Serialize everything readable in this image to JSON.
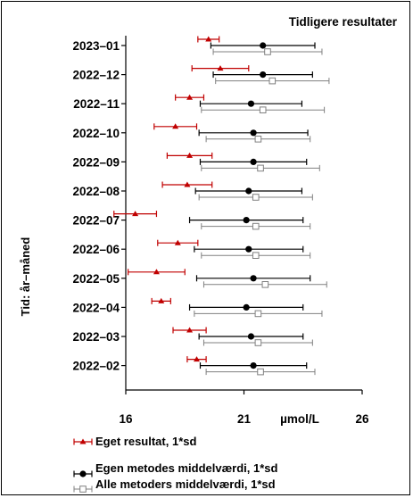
{
  "chart_data": {
    "type": "scatter",
    "title": "Tidligere resultater",
    "ylabel": "Tid: år–måned",
    "xlabel": "µmol/L",
    "xlim": [
      16,
      26
    ],
    "xticks": [
      "16",
      "21",
      "26"
    ],
    "categories": [
      "2023–01",
      "2022–12",
      "2022–11",
      "2022–10",
      "2022–09",
      "2022–08",
      "2022–07",
      "2022–06",
      "2022–05",
      "2022–04",
      "2022–03",
      "2022–02"
    ],
    "series": [
      {
        "name": "Eget resultat, 1*sd",
        "color": "#c00000",
        "marker": "triangle",
        "values": [
          19.5,
          20.0,
          18.7,
          18.1,
          18.7,
          18.6,
          16.4,
          18.2,
          17.3,
          17.5,
          18.7,
          19.0
        ],
        "err": [
          0.45,
          1.2,
          0.6,
          0.9,
          0.95,
          1.05,
          0.9,
          0.85,
          1.2,
          0.4,
          0.7,
          0.4
        ]
      },
      {
        "name": "Egen metodes middelværdi, 1*sd",
        "color": "#000000",
        "marker": "circle",
        "values": [
          21.8,
          21.8,
          21.3,
          21.4,
          21.4,
          21.2,
          21.1,
          21.2,
          21.4,
          21.1,
          21.3,
          21.4
        ],
        "err": [
          2.2,
          2.1,
          2.15,
          2.3,
          2.25,
          2.25,
          2.4,
          2.3,
          2.4,
          2.4,
          2.2,
          2.25
        ]
      },
      {
        "name": "Alle metoders middelværdi, 1*sd",
        "color": "#808080",
        "marker": "square",
        "values": [
          22.0,
          22.2,
          21.8,
          21.6,
          21.7,
          21.5,
          21.5,
          21.5,
          21.9,
          21.6,
          21.6,
          21.7
        ],
        "err": [
          2.3,
          2.4,
          2.6,
          2.2,
          2.5,
          2.4,
          2.3,
          2.3,
          2.6,
          2.7,
          2.3,
          2.3
        ]
      }
    ],
    "legend": "bottom-left",
    "grid": false
  }
}
